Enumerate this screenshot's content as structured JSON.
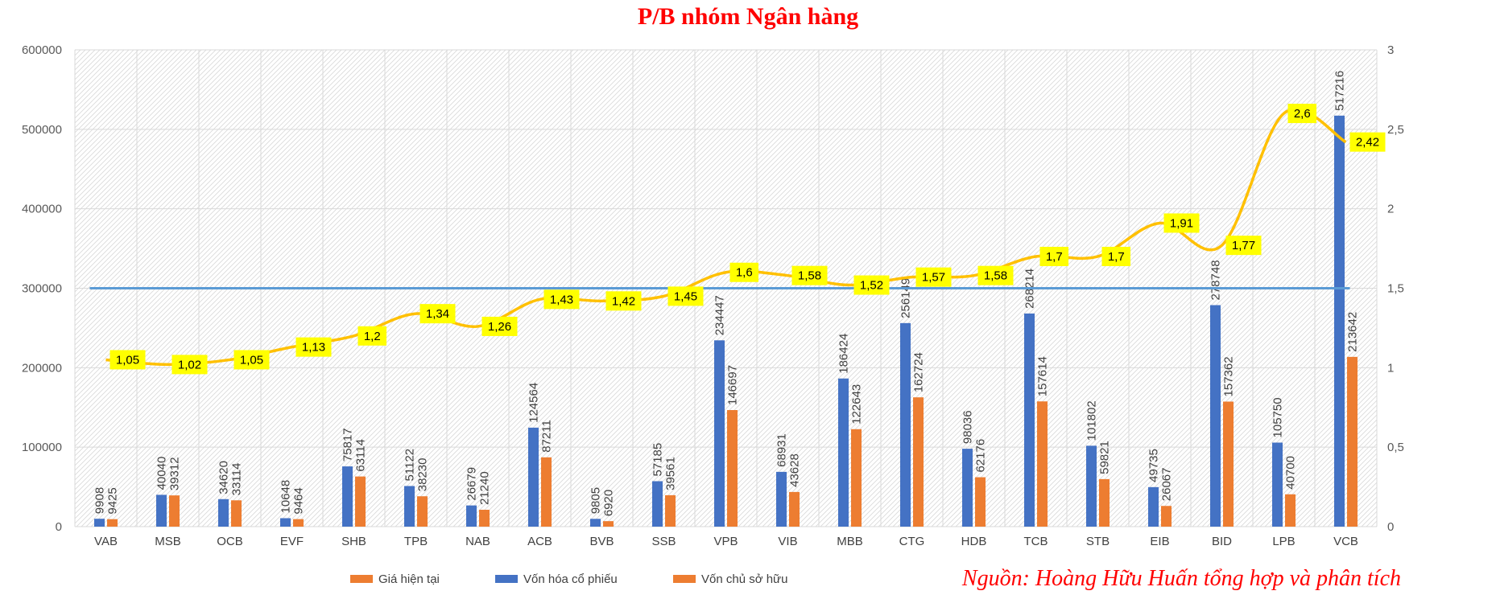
{
  "chart_data": {
    "type": "bar",
    "title": "P/B nhóm Ngân hàng",
    "source": "Nguồn: Hoàng Hữu Huấn tổng hợp và phân tích",
    "categories": [
      "VAB",
      "MSB",
      "OCB",
      "EVF",
      "SHB",
      "TPB",
      "NAB",
      "ACB",
      "BVB",
      "SSB",
      "VPB",
      "VIB",
      "MBB",
      "CTG",
      "HDB",
      "TCB",
      "STB",
      "EIB",
      "BID",
      "LPB",
      "VCB"
    ],
    "series": [
      {
        "name": "Vốn hóa cổ phiếu",
        "type": "bar",
        "axis": "left",
        "color": "#4472c4",
        "values": [
          9908,
          40040,
          34620,
          10648,
          75817,
          51122,
          26679,
          124564,
          9805,
          57185,
          234447,
          68931,
          186424,
          256149,
          98036,
          268214,
          101802,
          49735,
          278748,
          105750,
          517216
        ]
      },
      {
        "name": "Vốn chủ sở hữu",
        "type": "bar",
        "axis": "left",
        "color": "#ed7d31",
        "values": [
          9425,
          39312,
          33114,
          9464,
          63114,
          38230,
          21240,
          87211,
          6920,
          39561,
          146697,
          43628,
          122643,
          162724,
          62176,
          157614,
          59821,
          26067,
          157362,
          40700,
          213642
        ]
      },
      {
        "name": "P/B",
        "type": "line",
        "axis": "right",
        "color": "#ffc000",
        "values": [
          1.05,
          1.02,
          1.05,
          1.13,
          1.2,
          1.34,
          1.26,
          1.43,
          1.42,
          1.45,
          1.6,
          1.58,
          1.52,
          1.57,
          1.58,
          1.7,
          1.7,
          1.91,
          1.77,
          2.6,
          2.42
        ],
        "labels": [
          "1,05",
          "1,02",
          "1,05",
          "1,13",
          "1,2",
          "1,34",
          "1,26",
          "1,43",
          "1,42",
          "1,45",
          "1,6",
          "1,58",
          "1,52",
          "1,57",
          "1,58",
          "1,7",
          "1,7",
          "1,91",
          "1,77",
          "2,6",
          "2,42"
        ]
      },
      {
        "name": "Giá hiện tại",
        "type": "line",
        "axis": "right",
        "color": "#5b9bd5",
        "values": [
          1.5,
          1.5,
          1.5,
          1.5,
          1.5,
          1.5,
          1.5,
          1.5,
          1.5,
          1.5,
          1.5,
          1.5,
          1.5,
          1.5,
          1.5,
          1.5,
          1.5,
          1.5,
          1.5,
          1.5,
          1.5
        ]
      }
    ],
    "legend": [
      {
        "label": "Giá hiện tại",
        "color": "#ed7d31"
      },
      {
        "label": "Vốn hóa cổ phiếu",
        "color": "#4472c4"
      },
      {
        "label": "Vốn chủ sở hữu",
        "color": "#ed7d31"
      }
    ],
    "legend_position": "bottom",
    "ylim": [
      0,
      600000
    ],
    "yticks": [
      "0",
      "100000",
      "200000",
      "300000",
      "400000",
      "500000",
      "600000"
    ],
    "y2lim": [
      0,
      3
    ],
    "y2ticks": [
      "0",
      "0,5",
      "1",
      "1,5",
      "2",
      "2,5",
      "3"
    ],
    "grid": true,
    "label_box_color": "#ffff00"
  }
}
